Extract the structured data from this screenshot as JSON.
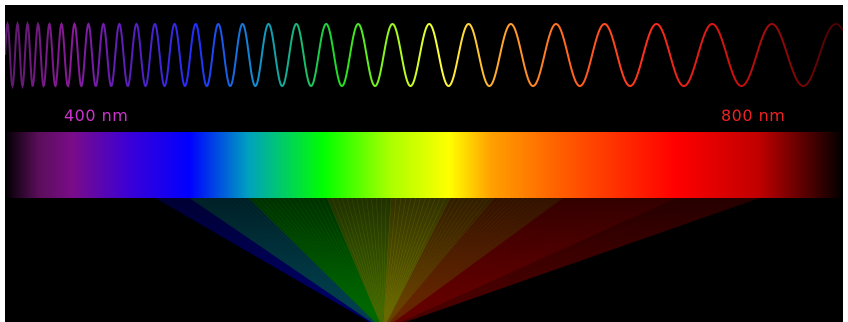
{
  "labels": {
    "short_wavelength": "400 nm",
    "long_wavelength": "800 nm"
  },
  "colors": {
    "background": "#000000",
    "short_label": "#cc33cc",
    "long_label": "#ee2222"
  },
  "spectrum": {
    "stops": [
      {
        "color": "#000000",
        "pos": 0.0
      },
      {
        "color": "#5a0e5a",
        "pos": 0.04
      },
      {
        "color": "#7a0c88",
        "pos": 0.08
      },
      {
        "color": "#3a00d8",
        "pos": 0.15
      },
      {
        "color": "#0000ff",
        "pos": 0.22
      },
      {
        "color": "#00a0c0",
        "pos": 0.29
      },
      {
        "color": "#00ff00",
        "pos": 0.38
      },
      {
        "color": "#aaff00",
        "pos": 0.46
      },
      {
        "color": "#ffff00",
        "pos": 0.53
      },
      {
        "color": "#ffa000",
        "pos": 0.58
      },
      {
        "color": "#ff6000",
        "pos": 0.66
      },
      {
        "color": "#ff0000",
        "pos": 0.8
      },
      {
        "color": "#c00000",
        "pos": 0.9
      },
      {
        "color": "#000000",
        "pos": 1.0
      }
    ]
  }
}
